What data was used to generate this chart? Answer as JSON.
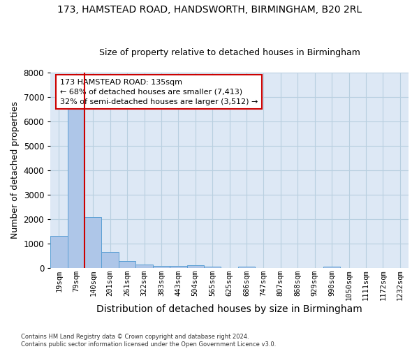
{
  "title_line1": "173, HAMSTEAD ROAD, HANDSWORTH, BIRMINGHAM, B20 2RL",
  "title_line2": "Size of property relative to detached houses in Birmingham",
  "xlabel": "Distribution of detached houses by size in Birmingham",
  "ylabel": "Number of detached properties",
  "footer": "Contains HM Land Registry data © Crown copyright and database right 2024.\nContains public sector information licensed under the Open Government Licence v3.0.",
  "bar_labels": [
    "19sqm",
    "79sqm",
    "140sqm",
    "201sqm",
    "261sqm",
    "322sqm",
    "383sqm",
    "443sqm",
    "504sqm",
    "565sqm",
    "625sqm",
    "686sqm",
    "747sqm",
    "807sqm",
    "868sqm",
    "929sqm",
    "990sqm",
    "1050sqm",
    "1111sqm",
    "1172sqm",
    "1232sqm"
  ],
  "bar_values": [
    1300,
    6600,
    2080,
    650,
    290,
    140,
    90,
    75,
    100,
    60,
    0,
    60,
    0,
    0,
    0,
    0,
    60,
    0,
    0,
    0,
    0
  ],
  "bar_color": "#aec6e8",
  "bar_edgecolor": "#5a9fd4",
  "property_line_color": "#cc0000",
  "property_line_bar_index": 1,
  "annotation_text": "173 HAMSTEAD ROAD: 135sqm\n← 68% of detached houses are smaller (7,413)\n32% of semi-detached houses are larger (3,512) →",
  "annotation_box_edgecolor": "#cc0000",
  "ylim": [
    0,
    8000
  ],
  "yticks": [
    0,
    1000,
    2000,
    3000,
    4000,
    5000,
    6000,
    7000,
    8000
  ],
  "background_color": "#ffffff",
  "plot_bg_color": "#dde8f5",
  "grid_color": "#b8cfe0",
  "title_fontsize": 10,
  "subtitle_fontsize": 9,
  "axis_label_fontsize": 9,
  "tick_fontsize": 7.5,
  "annotation_fontsize": 8,
  "footer_fontsize": 6
}
